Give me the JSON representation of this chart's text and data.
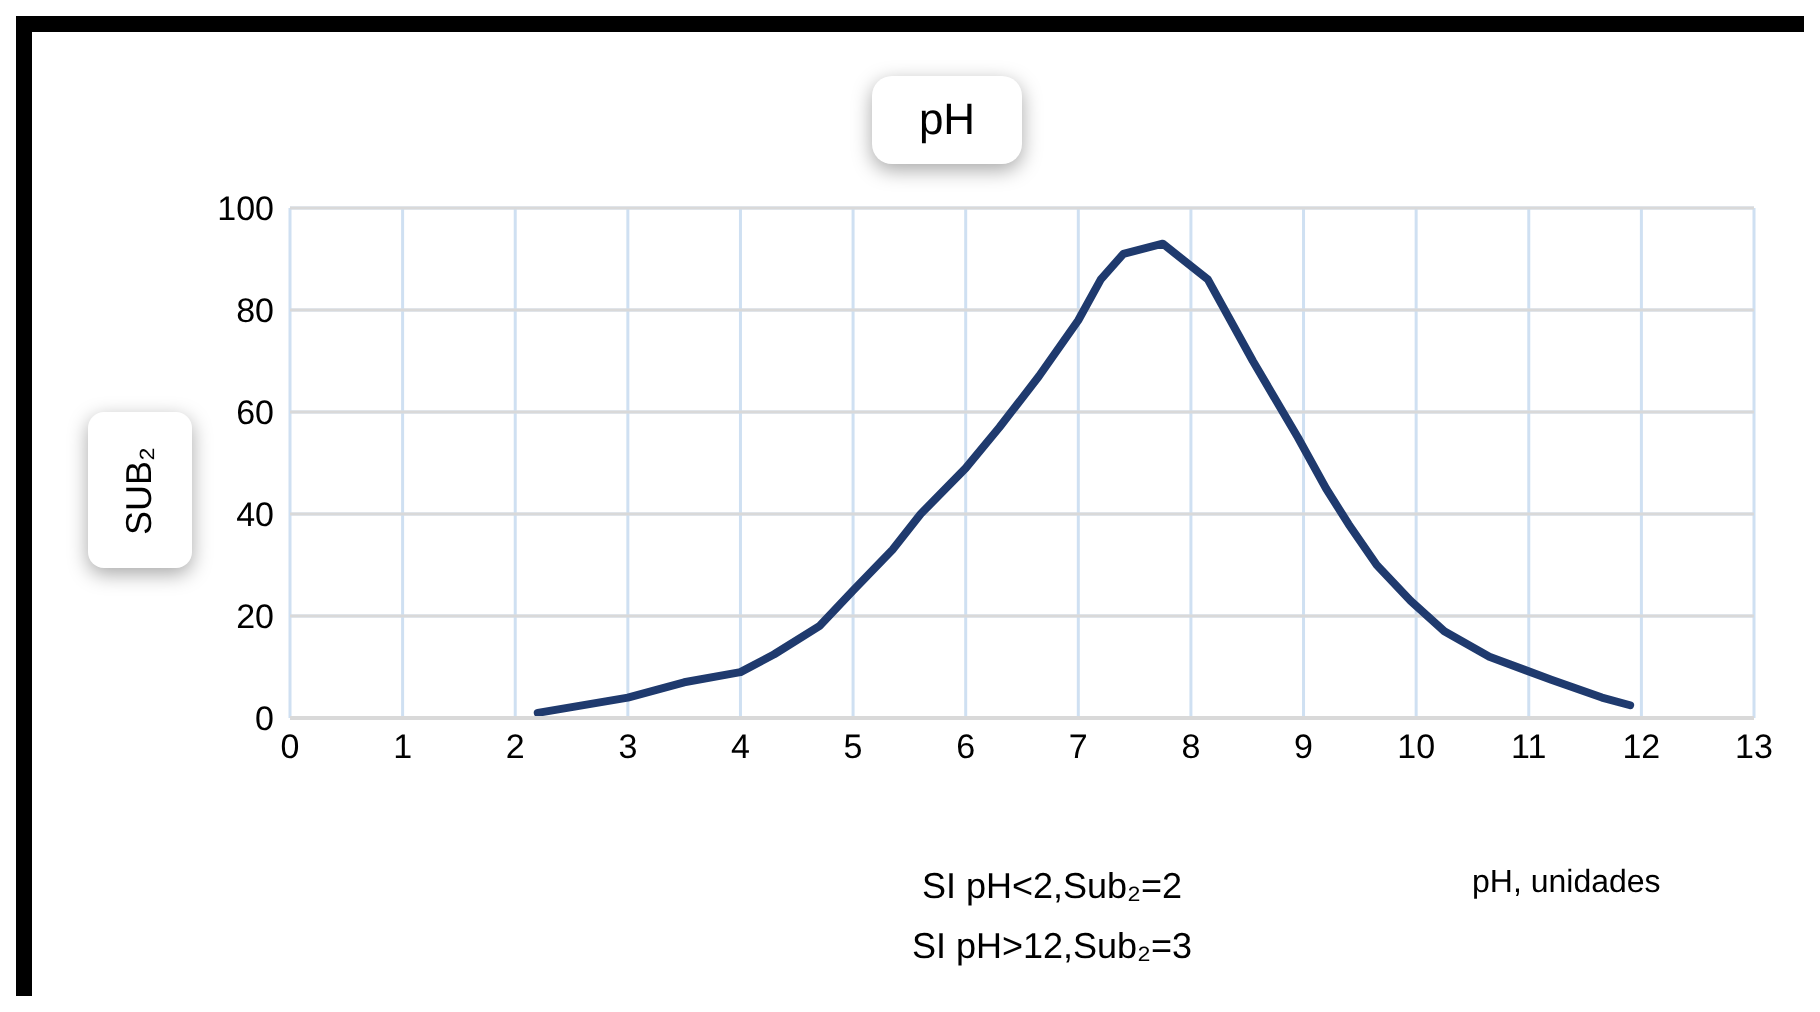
{
  "chart_data": {
    "type": "line",
    "title": "pH",
    "xlabel": "pH, unidades",
    "ylabel": "SUB₂",
    "annotations": [
      "SI pH<2,Sub₂=2",
      "SI pH>12,Sub₂=3"
    ],
    "x": [
      2.2,
      3,
      3.5,
      4,
      4.3,
      4.7,
      5,
      5.35,
      5.6,
      6,
      6.3,
      6.65,
      7,
      7.2,
      7.4,
      7.75,
      8.15,
      8.55,
      8.95,
      9.2,
      9.4,
      9.65,
      9.95,
      10.25,
      10.65,
      11.2,
      11.65,
      11.9
    ],
    "series": [
      {
        "color": "#1f3a6e",
        "values": [
          1,
          4,
          7,
          9,
          12.5,
          18,
          25,
          33,
          40,
          49,
          57,
          67,
          78,
          86,
          91,
          93,
          86,
          70,
          55,
          45,
          38,
          30,
          23,
          17,
          12,
          7.5,
          4,
          2.5
        ]
      }
    ],
    "xlim": [
      0,
      13
    ],
    "xticks": [
      0,
      1,
      2,
      3,
      4,
      5,
      6,
      7,
      8,
      9,
      10,
      11,
      12,
      13
    ],
    "ylim": [
      0,
      100
    ],
    "yticks": [
      0,
      20,
      40,
      60,
      80,
      100
    ],
    "grid": true,
    "marker": "none",
    "line_style": "solid"
  }
}
